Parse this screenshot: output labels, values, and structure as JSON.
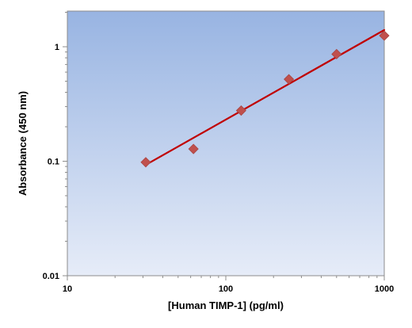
{
  "chart_data": {
    "type": "scatter",
    "title": "",
    "xlabel": "[Human TIMP-1] (pg/ml)",
    "ylabel": "Absorbance (450 nm)",
    "x_scale": "log",
    "y_scale": "log",
    "xlim": [
      10,
      1000
    ],
    "ylim": [
      0.01,
      2
    ],
    "x_ticks": [
      10,
      100,
      1000
    ],
    "x_tick_labels": [
      "10",
      "100",
      "1000"
    ],
    "y_ticks": [
      0.01,
      0.1,
      1
    ],
    "y_tick_labels": [
      "0.01",
      "0.1",
      "1"
    ],
    "grid": false,
    "legend": "none",
    "background": "gradient",
    "background_colors": [
      "#98b4e2",
      "#e6ecf8"
    ],
    "series": [
      {
        "type": "scatter",
        "marker": "diamond",
        "color": "#c0504d",
        "x": [
          31.25,
          62.5,
          125,
          250,
          500,
          1000
        ],
        "y": [
          0.098,
          0.128,
          0.277,
          0.52,
          0.862,
          1.25
        ]
      },
      {
        "type": "line",
        "color": "#c00000",
        "x": [
          31.25,
          1000
        ],
        "y": [
          0.093,
          1.4
        ]
      }
    ]
  }
}
